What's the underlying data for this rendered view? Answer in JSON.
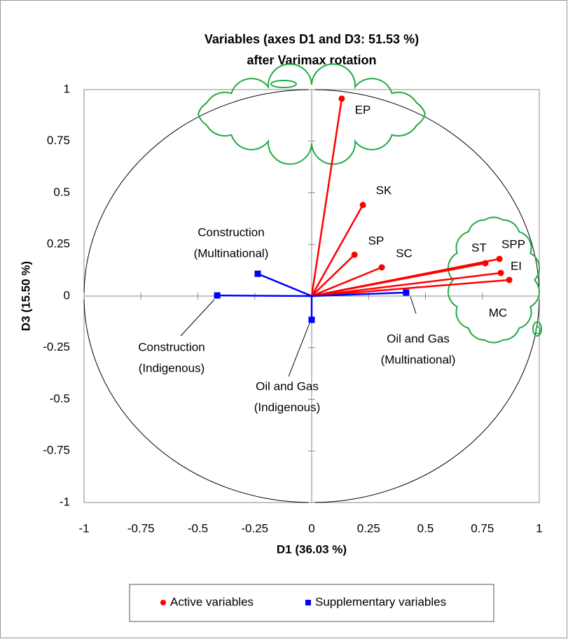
{
  "chart_data": {
    "type": "scatter",
    "title": [
      "Variables (axes D1 and D3: 51.53 %)",
      "after Varimax rotation"
    ],
    "x_label": "D1 (36.03 %)",
    "y_label": "D3 (15.50 %)",
    "xlim": [
      -1,
      1
    ],
    "ylim": [
      -1,
      1
    ],
    "xticks": [
      -1,
      -0.75,
      -0.5,
      -0.25,
      0,
      0.25,
      0.5,
      0.75,
      1
    ],
    "yticks": [
      -1,
      -0.75,
      -0.5,
      -0.25,
      0,
      0.25,
      0.5,
      0.75,
      1
    ],
    "legend": "bottom",
    "series": [
      {
        "name": "Active variables",
        "color": "#ff0000",
        "marker": "circle",
        "points": [
          {
            "label": [
              "EP"
            ],
            "x": 0.132,
            "y": 0.956
          },
          {
            "label": [
              "SK"
            ],
            "x": 0.225,
            "y": 0.441
          },
          {
            "label": [
              "SP"
            ],
            "x": 0.188,
            "y": 0.2
          },
          {
            "label": [
              "SC"
            ],
            "x": 0.308,
            "y": 0.139
          },
          {
            "label": [
              "ST"
            ],
            "x": 0.763,
            "y": 0.159
          },
          {
            "label": [
              "SPP"
            ],
            "x": 0.825,
            "y": 0.18
          },
          {
            "label": [
              "EI"
            ],
            "x": 0.831,
            "y": 0.112
          },
          {
            "label": [
              "MC"
            ],
            "x": 0.868,
            "y": 0.078
          }
        ]
      },
      {
        "name": "Supplementary variables",
        "color": "#0000ff",
        "marker": "square",
        "points": [
          {
            "label": [
              "Construction",
              "(Multinational)"
            ],
            "x": -0.237,
            "y": 0.108
          },
          {
            "label": [
              "Construction",
              "(Indigenous)"
            ],
            "x": -0.415,
            "y": 0.003
          },
          {
            "label": [
              "Oil and Gas",
              "(Indigenous)"
            ],
            "x": 0.0,
            "y": -0.115
          },
          {
            "label": [
              "Oil and Gas",
              "(Multinational)"
            ],
            "x": 0.415,
            "y": 0.017
          }
        ]
      }
    ]
  }
}
